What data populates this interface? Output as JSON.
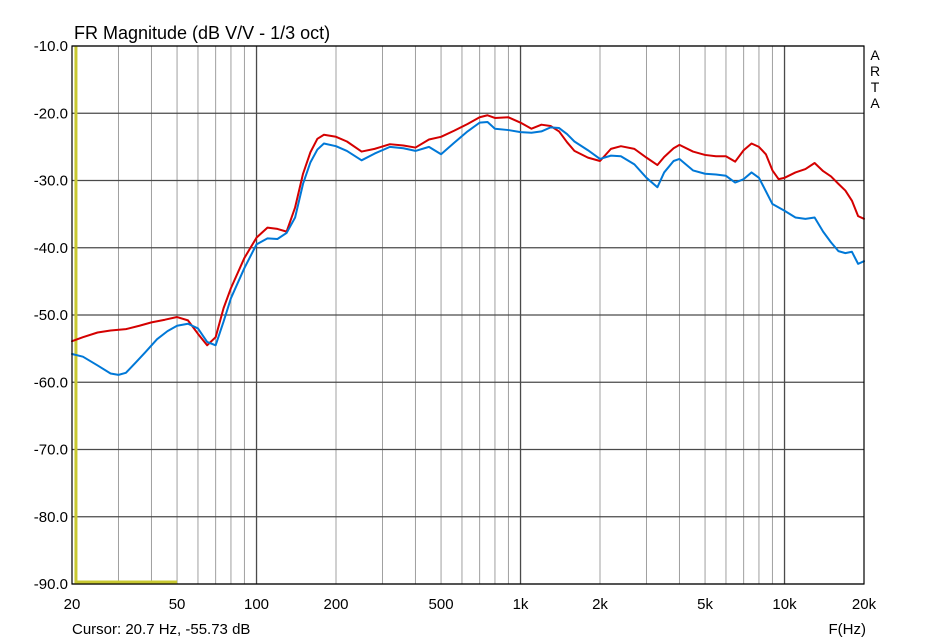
{
  "chart_data": {
    "type": "line",
    "title": "FR Magnitude (dB V/V - 1/3 oct)",
    "xlabel": "F(Hz)",
    "ylabel": "",
    "x_scale": "log",
    "xlim": [
      20,
      20000
    ],
    "ylim": [
      -90,
      -10
    ],
    "grid": true,
    "brand": "ARTA",
    "cursor_text": "Cursor: 20.7 Hz, -55.73 dB",
    "cursor": {
      "x": 20.7,
      "y_from": -90,
      "y_to": -10,
      "color": "#c8c832"
    },
    "cursor_baseline": {
      "x_from": 20.7,
      "x_to": 50,
      "y": -90,
      "color": "#c8c832"
    },
    "y_ticks": [
      {
        "value": -10,
        "label": "-10.0"
      },
      {
        "value": -20,
        "label": "-20.0"
      },
      {
        "value": -30,
        "label": "-30.0"
      },
      {
        "value": -40,
        "label": "-40.0"
      },
      {
        "value": -50,
        "label": "-50.0"
      },
      {
        "value": -60,
        "label": "-60.0"
      },
      {
        "value": -70,
        "label": "-70.0"
      },
      {
        "value": -80,
        "label": "-80.0"
      },
      {
        "value": -90,
        "label": "-90.0"
      }
    ],
    "x_ticks": [
      {
        "value": 20,
        "label": "20"
      },
      {
        "value": 50,
        "label": "50"
      },
      {
        "value": 100,
        "label": "100"
      },
      {
        "value": 200,
        "label": "200"
      },
      {
        "value": 500,
        "label": "500"
      },
      {
        "value": 1000,
        "label": "1k"
      },
      {
        "value": 2000,
        "label": "2k"
      },
      {
        "value": 5000,
        "label": "5k"
      },
      {
        "value": 10000,
        "label": "10k"
      },
      {
        "value": 20000,
        "label": "20k"
      }
    ],
    "major_gridlines_x": [
      100,
      1000,
      10000
    ],
    "minor_gridlines_x": [
      30,
      40,
      50,
      60,
      70,
      80,
      90,
      200,
      300,
      400,
      500,
      600,
      700,
      800,
      900,
      2000,
      3000,
      4000,
      5000,
      6000,
      7000,
      8000,
      9000
    ],
    "series": [
      {
        "color": "#d40000",
        "points": [
          [
            20,
            -53.9
          ],
          [
            22,
            -53.3
          ],
          [
            25,
            -52.6
          ],
          [
            28,
            -52.3
          ],
          [
            32,
            -52.1
          ],
          [
            36,
            -51.6
          ],
          [
            40,
            -51.1
          ],
          [
            45,
            -50.7
          ],
          [
            50,
            -50.3
          ],
          [
            55,
            -50.8
          ],
          [
            60,
            -52.8
          ],
          [
            65,
            -54.5
          ],
          [
            70,
            -53.3
          ],
          [
            75,
            -49
          ],
          [
            80,
            -46
          ],
          [
            90,
            -41.5
          ],
          [
            100,
            -38.5
          ],
          [
            110,
            -37
          ],
          [
            120,
            -37.2
          ],
          [
            130,
            -37.6
          ],
          [
            140,
            -34
          ],
          [
            150,
            -29
          ],
          [
            160,
            -25.8
          ],
          [
            170,
            -23.8
          ],
          [
            180,
            -23.2
          ],
          [
            200,
            -23.5
          ],
          [
            220,
            -24.2
          ],
          [
            250,
            -25.7
          ],
          [
            280,
            -25.3
          ],
          [
            320,
            -24.6
          ],
          [
            360,
            -24.8
          ],
          [
            400,
            -25.1
          ],
          [
            450,
            -23.9
          ],
          [
            500,
            -23.5
          ],
          [
            560,
            -22.6
          ],
          [
            630,
            -21.6
          ],
          [
            700,
            -20.6
          ],
          [
            750,
            -20.3
          ],
          [
            800,
            -20.7
          ],
          [
            900,
            -20.6
          ],
          [
            1000,
            -21.4
          ],
          [
            1100,
            -22.3
          ],
          [
            1200,
            -21.7
          ],
          [
            1300,
            -21.9
          ],
          [
            1400,
            -22.7
          ],
          [
            1500,
            -24.3
          ],
          [
            1600,
            -25.6
          ],
          [
            1800,
            -26.6
          ],
          [
            2000,
            -27.1
          ],
          [
            2200,
            -25.3
          ],
          [
            2400,
            -24.9
          ],
          [
            2700,
            -25.3
          ],
          [
            3000,
            -26.6
          ],
          [
            3300,
            -27.7
          ],
          [
            3500,
            -26.5
          ],
          [
            3800,
            -25.2
          ],
          [
            4000,
            -24.7
          ],
          [
            4500,
            -25.7
          ],
          [
            5000,
            -26.2
          ],
          [
            5500,
            -26.4
          ],
          [
            6000,
            -26.4
          ],
          [
            6500,
            -27.2
          ],
          [
            7000,
            -25.5
          ],
          [
            7500,
            -24.5
          ],
          [
            8000,
            -25
          ],
          [
            8500,
            -26.1
          ],
          [
            9000,
            -28.5
          ],
          [
            9500,
            -29.8
          ],
          [
            10000,
            -29.6
          ],
          [
            11000,
            -28.8
          ],
          [
            12000,
            -28.3
          ],
          [
            13000,
            -27.4
          ],
          [
            14000,
            -28.6
          ],
          [
            15000,
            -29.4
          ],
          [
            16000,
            -30.5
          ],
          [
            17000,
            -31.5
          ],
          [
            18000,
            -33
          ],
          [
            19000,
            -35.3
          ],
          [
            20000,
            -35.7
          ]
        ]
      },
      {
        "color": "#0078d7",
        "points": [
          [
            20,
            -55.8
          ],
          [
            22,
            -56.2
          ],
          [
            25,
            -57.5
          ],
          [
            28,
            -58.7
          ],
          [
            30,
            -58.9
          ],
          [
            32,
            -58.6
          ],
          [
            35,
            -57
          ],
          [
            38,
            -55.5
          ],
          [
            42,
            -53.6
          ],
          [
            46,
            -52.4
          ],
          [
            50,
            -51.6
          ],
          [
            55,
            -51.3
          ],
          [
            60,
            -52
          ],
          [
            65,
            -54
          ],
          [
            70,
            -54.5
          ],
          [
            75,
            -51
          ],
          [
            80,
            -47.5
          ],
          [
            90,
            -43
          ],
          [
            100,
            -39.5
          ],
          [
            110,
            -38.6
          ],
          [
            120,
            -38.7
          ],
          [
            130,
            -37.8
          ],
          [
            140,
            -35.5
          ],
          [
            150,
            -30.5
          ],
          [
            160,
            -27.3
          ],
          [
            170,
            -25.4
          ],
          [
            180,
            -24.5
          ],
          [
            200,
            -24.9
          ],
          [
            220,
            -25.6
          ],
          [
            250,
            -27
          ],
          [
            280,
            -26
          ],
          [
            320,
            -25
          ],
          [
            360,
            -25.2
          ],
          [
            400,
            -25.6
          ],
          [
            450,
            -25
          ],
          [
            500,
            -26.1
          ],
          [
            560,
            -24.4
          ],
          [
            630,
            -22.7
          ],
          [
            700,
            -21.4
          ],
          [
            750,
            -21.3
          ],
          [
            800,
            -22.3
          ],
          [
            900,
            -22.5
          ],
          [
            1000,
            -22.8
          ],
          [
            1100,
            -22.9
          ],
          [
            1200,
            -22.7
          ],
          [
            1300,
            -22.1
          ],
          [
            1400,
            -22.2
          ],
          [
            1500,
            -23.1
          ],
          [
            1600,
            -24.2
          ],
          [
            1800,
            -25.5
          ],
          [
            2000,
            -26.8
          ],
          [
            2200,
            -26.3
          ],
          [
            2400,
            -26.4
          ],
          [
            2700,
            -27.6
          ],
          [
            3000,
            -29.6
          ],
          [
            3300,
            -31
          ],
          [
            3500,
            -28.8
          ],
          [
            3800,
            -27.1
          ],
          [
            4000,
            -26.8
          ],
          [
            4500,
            -28.5
          ],
          [
            5000,
            -29
          ],
          [
            5500,
            -29.1
          ],
          [
            6000,
            -29.3
          ],
          [
            6500,
            -30.3
          ],
          [
            7000,
            -29.8
          ],
          [
            7500,
            -28.8
          ],
          [
            8000,
            -29.6
          ],
          [
            8500,
            -31.6
          ],
          [
            9000,
            -33.5
          ],
          [
            10000,
            -34.5
          ],
          [
            11000,
            -35.5
          ],
          [
            12000,
            -35.7
          ],
          [
            13000,
            -35.5
          ],
          [
            14000,
            -37.6
          ],
          [
            15000,
            -39.2
          ],
          [
            16000,
            -40.5
          ],
          [
            17000,
            -40.8
          ],
          [
            18000,
            -40.6
          ],
          [
            19000,
            -42.4
          ],
          [
            20000,
            -42
          ]
        ]
      }
    ]
  }
}
